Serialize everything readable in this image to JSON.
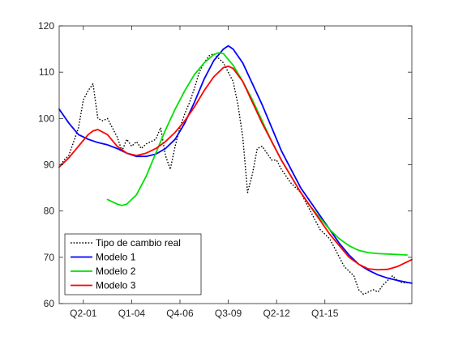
{
  "chart_data": {
    "type": "line",
    "title": "",
    "xlabel": "",
    "ylabel": "",
    "categories": [
      "Q2-01",
      "Q1-04",
      "Q4-06",
      "Q3-09",
      "Q2-12",
      "Q1-15"
    ],
    "ylim": [
      60,
      120
    ],
    "yticks": [
      60,
      70,
      80,
      90,
      100,
      110,
      120
    ],
    "grid": false,
    "legend_position": "bottom-left",
    "x_points": [
      0,
      1,
      2,
      3,
      4,
      5,
      6,
      7,
      8,
      9,
      10,
      11,
      12,
      13,
      14,
      15,
      16,
      17,
      18,
      19,
      20,
      21,
      22,
      23,
      24,
      25,
      26,
      27,
      28,
      29,
      30,
      31,
      32,
      33,
      34,
      35,
      36,
      37,
      38,
      39,
      40,
      41,
      42,
      43,
      44,
      45,
      46,
      47,
      48,
      49,
      50,
      51,
      52,
      53,
      54,
      55,
      56,
      57,
      58,
      59,
      60,
      61,
      62,
      63,
      64,
      65,
      66,
      67,
      68,
      69,
      70,
      71,
      72,
      73
    ],
    "tick_positions": [
      5,
      15,
      25,
      35,
      45,
      55
    ],
    "series": [
      {
        "name": "Tipo de cambio real",
        "style": "dotted",
        "color": "#000000",
        "x": [
          0,
          1,
          2,
          3,
          4,
          5,
          6,
          7,
          8,
          9,
          10,
          11,
          12,
          13,
          14,
          15,
          16,
          17,
          18,
          19,
          20,
          21,
          22,
          23,
          24,
          25,
          26,
          27,
          28,
          29,
          30,
          31,
          32,
          33,
          34,
          35,
          36,
          37,
          38,
          39,
          40,
          41,
          42,
          43,
          44,
          45,
          46,
          47,
          48,
          49,
          50,
          51,
          52,
          53,
          54,
          55,
          56,
          57,
          58,
          59,
          60,
          61,
          62,
          63,
          64,
          65,
          66,
          67,
          68,
          69,
          70,
          71,
          72,
          73
        ],
        "values": [
          89.5,
          91,
          92,
          95,
          98,
          104,
          106,
          107.5,
          100,
          99.5,
          100,
          98,
          96,
          93,
          95.5,
          94,
          95,
          93.5,
          94.5,
          95,
          95.5,
          98,
          92,
          89,
          94,
          98,
          101,
          103.5,
          106.5,
          110,
          112,
          113.5,
          114,
          113,
          112,
          110,
          108,
          103,
          96,
          84,
          88,
          93.5,
          94,
          92.5,
          91,
          91,
          89,
          87.5,
          86,
          85,
          84,
          82,
          80,
          78,
          76,
          75,
          74,
          72,
          70,
          68,
          67,
          66,
          63,
          62,
          62.5,
          63,
          62.5,
          64,
          65,
          66,
          65,
          64.5,
          64.5,
          64.5
        ]
      },
      {
        "name": "Modelo 1",
        "style": "solid",
        "color": "#0000ff",
        "x": [
          0,
          2,
          4,
          6,
          8,
          10,
          12,
          14,
          16,
          18,
          20,
          22,
          24,
          26,
          28,
          30,
          32,
          34,
          35,
          36,
          38,
          40,
          42,
          44,
          46,
          48,
          50,
          52,
          54,
          56,
          58,
          60,
          62,
          64,
          66,
          68,
          70,
          72,
          73
        ],
        "values": [
          102,
          99,
          96.5,
          95.5,
          94.8,
          94.3,
          93.5,
          92.5,
          91.8,
          91.8,
          92.3,
          93.5,
          95.5,
          99,
          103.5,
          108.5,
          112.5,
          115,
          115.7,
          115,
          112,
          107.5,
          103,
          98,
          93,
          89,
          85,
          82,
          79,
          76,
          73,
          70.5,
          68.5,
          67.2,
          66.2,
          65.5,
          65,
          64.6,
          64.4
        ]
      },
      {
        "name": "Modelo 2",
        "style": "solid",
        "color": "#00e000",
        "x": [
          10,
          12,
          13,
          14,
          16,
          18,
          20,
          22,
          24,
          26,
          28,
          30,
          32,
          33,
          34,
          36,
          38,
          40,
          42,
          44,
          46,
          48,
          50,
          52,
          54,
          56,
          58,
          60,
          62,
          64,
          66,
          68,
          70,
          72
        ],
        "values": [
          82.5,
          81.5,
          81.2,
          81.5,
          83.5,
          87.5,
          92.5,
          97.5,
          102,
          106,
          109.5,
          112,
          113.8,
          114.2,
          114,
          111.5,
          108,
          104,
          99.5,
          95,
          91,
          87.5,
          84,
          81,
          78.5,
          76,
          74,
          72.5,
          71.5,
          71,
          70.8,
          70.7,
          70.6,
          70.5
        ]
      },
      {
        "name": "Modelo 3",
        "style": "solid",
        "color": "#ff0000",
        "x": [
          0,
          2,
          4,
          6,
          7,
          8,
          10,
          12,
          14,
          16,
          18,
          20,
          22,
          24,
          26,
          28,
          30,
          32,
          34,
          35,
          36,
          38,
          40,
          42,
          44,
          46,
          48,
          50,
          52,
          54,
          56,
          58,
          60,
          62,
          64,
          66,
          68,
          70,
          72,
          73
        ],
        "values": [
          89.5,
          91.5,
          94,
          96.5,
          97.3,
          97.6,
          96.5,
          94,
          92.5,
          92,
          92.5,
          93.5,
          95,
          97,
          99.5,
          102.5,
          106,
          109,
          111,
          111.3,
          110.8,
          108,
          103.5,
          99,
          95,
          91,
          87.5,
          84,
          81,
          78,
          75,
          72.5,
          70,
          68.5,
          67.5,
          67.3,
          67.4,
          68,
          69,
          69.5
        ]
      }
    ]
  }
}
